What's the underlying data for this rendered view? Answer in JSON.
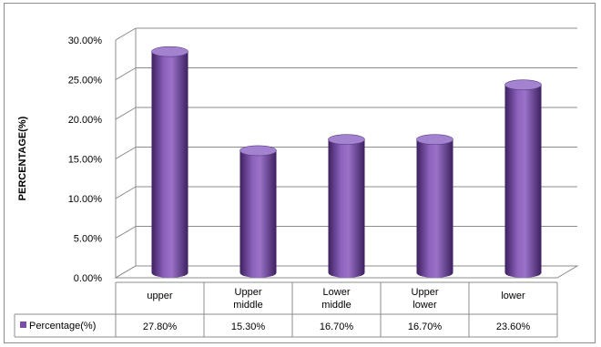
{
  "chart_data": {
    "type": "bar",
    "categories": [
      "upper",
      "Upper\nmiddle",
      "Lower\nmiddle",
      "Upper\nlower",
      "lower"
    ],
    "series": [
      {
        "name": "Percentage(%)",
        "values": [
          27.8,
          15.3,
          16.7,
          16.7,
          23.6
        ],
        "labels": [
          "27.80%",
          "15.30%",
          "16.70%",
          "16.70%",
          "23.60%"
        ]
      }
    ],
    "ylabel": "PERCENTAGE(%)",
    "xlabel": "",
    "ylim": [
      0,
      30
    ],
    "yticks": [
      "0.00%",
      "5.00%",
      "10.00%",
      "15.00%",
      "20.00%",
      "25.00%",
      "30.00%"
    ],
    "grid": true,
    "legend": "in data table",
    "colors": {
      "bar": "#7b4fa8",
      "bar_dark": "#3e2060",
      "bar_light": "#b79be0",
      "top": "#a383cf",
      "legend_key": "#7b4fa8"
    }
  }
}
